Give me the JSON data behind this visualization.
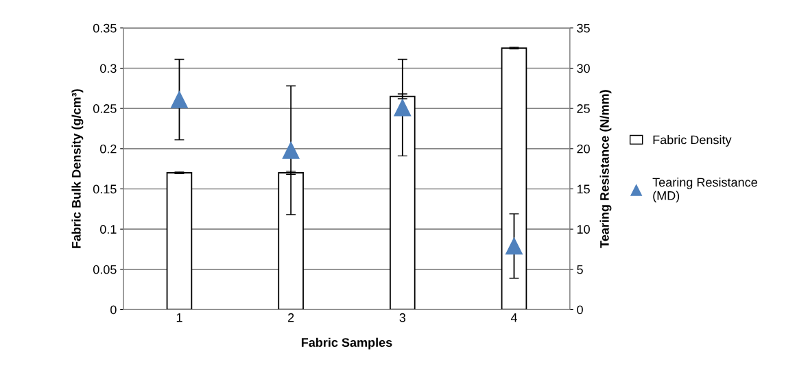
{
  "chart_data": {
    "type": "bar",
    "xlabel": "Fabric Samples",
    "ylabel": "Fabric Bulk Density (g/cm³)",
    "y2label": "Tearing Resistance (N/mm)",
    "categories": [
      "1",
      "2",
      "3",
      "4"
    ],
    "series": [
      {
        "name": "Fabric Density",
        "color": "#ffffff",
        "values": [
          0.17,
          0.17,
          0.265,
          0.325
        ],
        "errors": [
          0.001,
          0.002,
          0.003,
          0.001
        ]
      },
      {
        "name": "Tearing Resistance (MD)",
        "type": "scatter",
        "axis": "y2",
        "marker": "triangle",
        "color": "#4f81bd",
        "values": [
          26.1,
          19.8,
          25.1,
          7.9
        ],
        "errors": [
          5,
          8,
          6,
          4
        ]
      }
    ],
    "ylim": [
      0,
      0.35
    ],
    "yticks": [
      {
        "value": 0,
        "label": "0"
      },
      0.05,
      0.1,
      0.15,
      0.2,
      0.25,
      0.3,
      0.35
    ],
    "y2lim": [
      0,
      35
    ],
    "y2ticks": [
      0,
      5,
      10,
      15,
      20,
      25,
      30,
      35
    ],
    "grid": "y",
    "legend": "right"
  }
}
